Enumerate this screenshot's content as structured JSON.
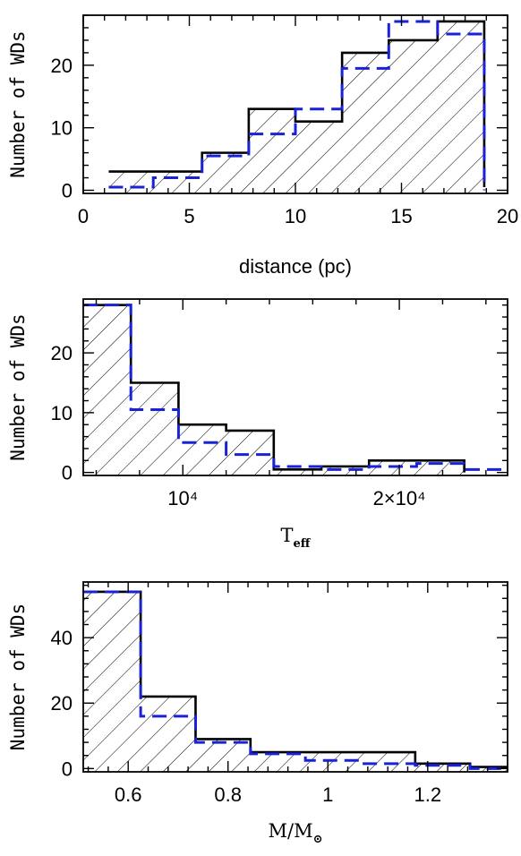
{
  "colors": {
    "observed": "#000000",
    "model": "#1a22d6",
    "hatch": "#000000",
    "background": "#ffffff"
  },
  "chart_data": [
    {
      "type": "histogram",
      "xlabel": "distance (pc)",
      "ylabel": "Number of WDs",
      "xlim": [
        0,
        20
      ],
      "ylim": [
        -0.5,
        28
      ],
      "xticks": [
        0,
        5,
        10,
        15,
        20
      ],
      "xtick_labels": [
        "0",
        "5",
        "10",
        "15",
        "20"
      ],
      "yticks": [
        0,
        10,
        20
      ],
      "ytick_labels": [
        "0",
        "10",
        "20"
      ],
      "series": [
        {
          "style": "solid-hatched",
          "edges": [
            1.2,
            5.6,
            7.8,
            10.0,
            12.2,
            14.4,
            16.7,
            18.9
          ],
          "values": [
            3,
            6,
            13,
            11,
            22,
            24,
            27
          ],
          "drop_to": 0.5
        },
        {
          "style": "dashed",
          "edges": [
            1.2,
            3.3,
            5.6,
            7.8,
            10.0,
            12.2,
            14.4,
            16.7,
            18.9
          ],
          "values": [
            0.5,
            2,
            5.5,
            9,
            13,
            19.5,
            27,
            25
          ],
          "drop_to": 0
        }
      ]
    },
    {
      "type": "histogram",
      "xlabel": "T",
      "xlabel_sub": "eff",
      "ylabel": "Number of WDs",
      "xlim": [
        5400,
        25000
      ],
      "ylim": [
        -0.5,
        29
      ],
      "xticks": [
        10000,
        20000
      ],
      "xtick_labels": [
        "10⁴",
        "2×10⁴"
      ],
      "yticks": [
        0,
        10,
        20
      ],
      "ytick_labels": [
        "0",
        "10",
        "20"
      ],
      "series": [
        {
          "style": "solid-hatched",
          "edges": [
            5400,
            7600,
            9800,
            12000,
            14200,
            16400,
            18600,
            20800,
            23000
          ],
          "values": [
            28,
            15,
            8,
            7,
            0.5,
            1,
            2,
            2
          ],
          "drop_to": 0
        },
        {
          "style": "dashed",
          "edges": [
            5400,
            7600,
            9800,
            12000,
            14200,
            16400,
            18600,
            20800,
            23000,
            25000
          ],
          "values": [
            28,
            10.5,
            5,
            3,
            1,
            0.5,
            1,
            1.5,
            0.5
          ],
          "drop_to": null
        }
      ]
    },
    {
      "type": "histogram",
      "xlabel": "M/M",
      "xlabel_sub": "⊙",
      "ylabel": "Number of WDs",
      "xlim": [
        0.51,
        1.36
      ],
      "ylim": [
        -1,
        57
      ],
      "xticks": [
        0.6,
        0.8,
        1.0,
        1.2
      ],
      "xtick_labels": [
        "0.6",
        "0.8",
        "1",
        "1.2"
      ],
      "yticks": [
        0,
        20,
        40
      ],
      "ytick_labels": [
        "0",
        "20",
        "40"
      ],
      "series": [
        {
          "style": "solid-hatched",
          "edges": [
            0.51,
            0.625,
            0.735,
            0.845,
            0.955,
            1.065,
            1.175,
            1.285,
            1.36
          ],
          "values": [
            54,
            22,
            9,
            5,
            5,
            5,
            1.5,
            0.5
          ],
          "drop_to": null
        },
        {
          "style": "dashed",
          "edges": [
            0.51,
            0.625,
            0.735,
            0.845,
            0.955,
            1.065,
            1.175,
            1.285,
            1.36
          ],
          "values": [
            54,
            16,
            8,
            4.5,
            2.5,
            1.5,
            1,
            0
          ],
          "drop_to": null
        }
      ]
    }
  ]
}
